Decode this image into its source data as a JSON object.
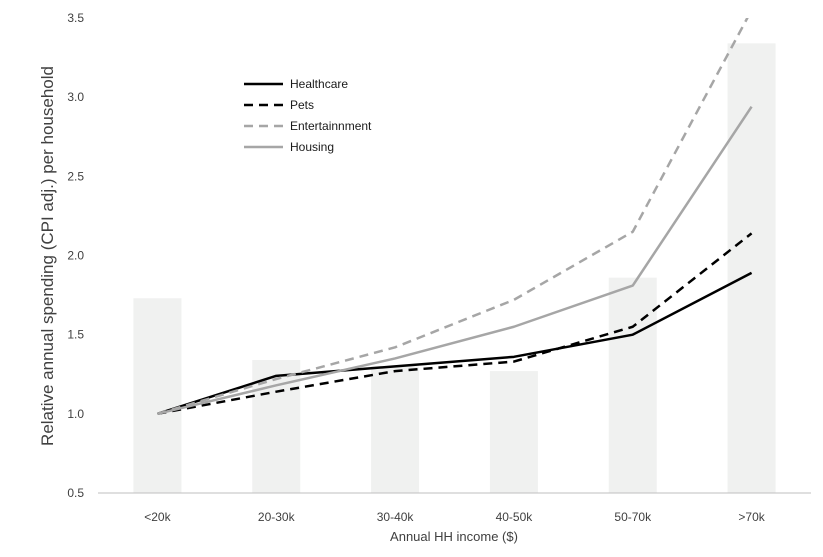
{
  "chart_data": {
    "type": "line",
    "categories": [
      "<20k",
      "20-30k",
      "30-40k",
      "40-50k",
      "50-70k",
      ">70k"
    ],
    "xlabel": "Annual HH income ($)",
    "ylabel": "Relative annual spending (CPI adj.) per household",
    "ylim": [
      0.5,
      3.5
    ],
    "yticks": [
      "0.5",
      "1.0",
      "1.5",
      "2.0",
      "2.5",
      "3.0",
      "3.5"
    ],
    "grid": false,
    "legend_position": "top-left",
    "bars": {
      "values": [
        1.73,
        1.34,
        1.3,
        1.27,
        1.86,
        3.34
      ],
      "color": "#f0f1f0"
    },
    "series": [
      {
        "name": "Healthcare",
        "values": [
          1.0,
          1.24,
          1.3,
          1.36,
          1.5,
          1.89
        ],
        "color": "#000000",
        "dash": "solid"
      },
      {
        "name": "Pets",
        "values": [
          1.0,
          1.14,
          1.27,
          1.33,
          1.55,
          2.14
        ],
        "color": "#000000",
        "dash": "dashed"
      },
      {
        "name": "Entertainnment",
        "values": [
          1.0,
          1.22,
          1.42,
          1.72,
          2.15,
          3.55
        ],
        "color": "#a6a6a6",
        "dash": "dashed"
      },
      {
        "name": "Housing",
        "values": [
          1.0,
          1.18,
          1.35,
          1.55,
          1.81,
          2.94
        ],
        "color": "#a6a6a6",
        "dash": "solid"
      }
    ]
  }
}
